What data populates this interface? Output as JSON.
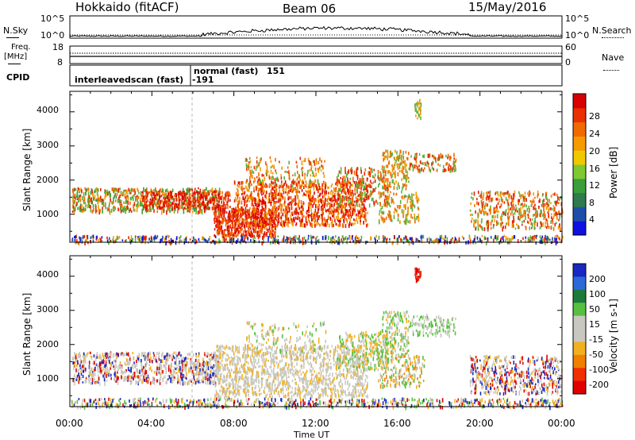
{
  "header": {
    "station": "Hokkaido (fitACF)",
    "beam": "Beam 06",
    "date": "15/May/2016"
  },
  "top_panels": {
    "nsky_label": "N.Sky",
    "nsearch_label": "N.Search",
    "noise_ticks_left": [
      "10^5",
      "10^0"
    ],
    "noise_ticks_right": [
      "10^5",
      "10^0"
    ],
    "freq_label_1": "Freq.",
    "freq_label_2": "[MHz]",
    "freq_ticks": [
      "18",
      "8"
    ],
    "nave_label": "Nave",
    "nave_ticks": [
      "60",
      "0"
    ],
    "cpid_label": "CPID",
    "cpid_segments": [
      {
        "name": "interleavedscan (fast)",
        "id": "-191"
      },
      {
        "name": "normal (fast)",
        "id": "151"
      }
    ]
  },
  "chart_data": [
    {
      "type": "heatmap",
      "panel": "power",
      "ylabel": "Slant Range [km]",
      "xlabel": "Time UT",
      "x_ticks": [
        "00:00",
        "04:00",
        "08:00",
        "12:00",
        "16:00",
        "20:00",
        "00:00"
      ],
      "xlim_hours": [
        0,
        24
      ],
      "y_ticks": [
        1000,
        2000,
        3000,
        4000
      ],
      "ylim_km": [
        180,
        4600
      ],
      "colorbar": {
        "label": "Power [dB]",
        "ticks": [
          "4",
          "8",
          "12",
          "16",
          "20",
          "24",
          "28"
        ],
        "colors": [
          "#1010e0",
          "#1e4fa8",
          "#2f7a4f",
          "#3a9e3a",
          "#7fc832",
          "#f0c800",
          "#f59a00",
          "#f06a00",
          "#e83000",
          "#d80000"
        ]
      }
    },
    {
      "type": "heatmap",
      "panel": "velocity",
      "ylabel": "Slant Range [km]",
      "xlabel": "Time UT",
      "x_ticks": [
        "00:00",
        "04:00",
        "08:00",
        "12:00",
        "16:00",
        "20:00",
        "00:00"
      ],
      "xlim_hours": [
        0,
        24
      ],
      "y_ticks": [
        1000,
        2000,
        3000,
        4000
      ],
      "ylim_km": [
        180,
        4600
      ],
      "colorbar": {
        "label": "Velocity [m s-1]",
        "ticks": [
          "200",
          "100",
          "50",
          "15",
          "-15",
          "-50",
          "-100",
          "-200"
        ],
        "colors": [
          "#1828c0",
          "#2a6ad8",
          "#1e7a3a",
          "#58c040",
          "#c8c8c0",
          "#c8c8c0",
          "#f0b020",
          "#f08000",
          "#f03000",
          "#e00000"
        ]
      }
    }
  ],
  "colors": {
    "scatter_power_red": "#e82000",
    "scatter_power_orange": "#f08a00",
    "scatter_power_green": "#5ab040",
    "scatter_vel_grey": "#c8c8c0",
    "scatter_vel_yellow": "#f0b020",
    "scatter_vel_green": "#58c040"
  }
}
